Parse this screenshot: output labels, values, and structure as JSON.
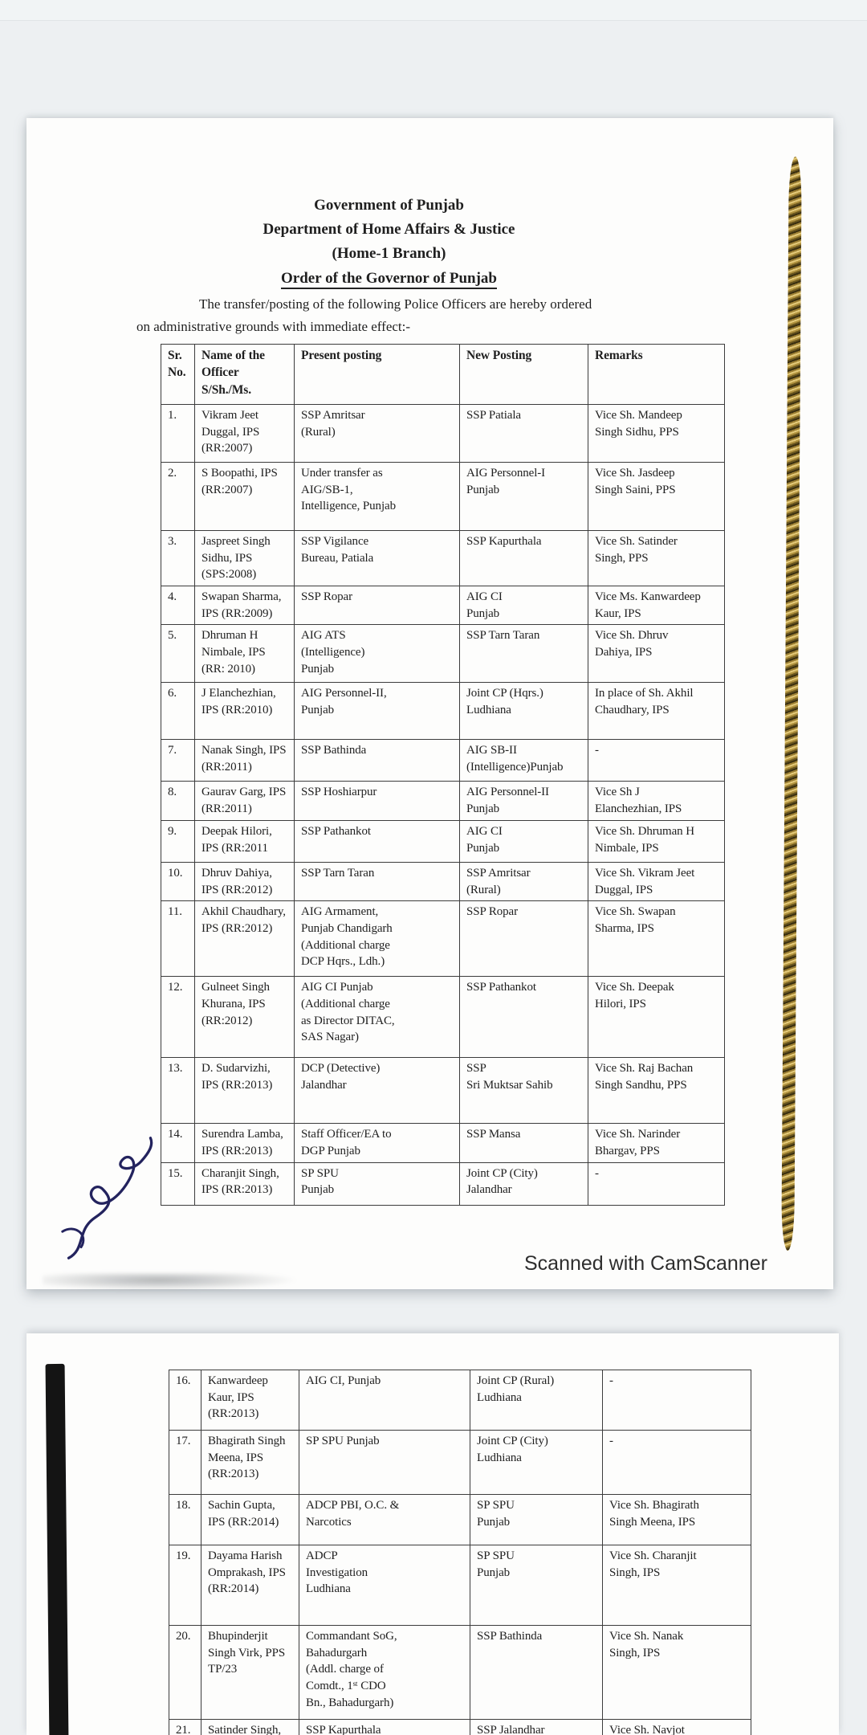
{
  "document": {
    "header": [
      "Government of Punjab",
      "Department of Home Affairs & Justice",
      "(Home-1 Branch)"
    ],
    "order_title": "Order of the Governor of Punjab",
    "intro_line1": "The transfer/posting of the following Police Officers are hereby ordered",
    "intro_line2": "on administrative grounds with immediate effect:-"
  },
  "table": {
    "columns": [
      "Sr.\nNo.",
      "Name of the\nOfficer\nS/Sh./Ms.",
      "Present posting",
      "New Posting",
      "Remarks"
    ],
    "page1_rows": [
      [
        "1.",
        "Vikram Jeet\nDuggal, IPS\n(RR:2007)",
        "SSP Amritsar\n(Rural)",
        "SSP Patiala",
        "Vice Sh. Mandeep\nSingh Sidhu, PPS"
      ],
      [
        "2.",
        "S Boopathi, IPS\n(RR:2007)",
        "Under transfer as\nAIG/SB-1,\nIntelligence, Punjab",
        "AIG Personnel-I\nPunjab",
        "Vice Sh. Jasdeep\nSingh Saini, PPS"
      ],
      [
        "3.",
        "Jaspreet Singh\nSidhu, IPS\n(SPS:2008)",
        "SSP Vigilance\nBureau, Patiala",
        "SSP Kapurthala",
        "Vice Sh. Satinder\nSingh, PPS"
      ],
      [
        "4.",
        "Swapan Sharma,\nIPS (RR:2009)",
        "SSP Ropar",
        "AIG CI\nPunjab",
        "Vice Ms. Kanwardeep\nKaur, IPS"
      ],
      [
        "5.",
        "Dhruman H\nNimbale, IPS\n(RR: 2010)",
        "AIG ATS\n(Intelligence)\nPunjab",
        "SSP Tarn Taran",
        "Vice Sh. Dhruv\nDahiya, IPS"
      ],
      [
        "6.",
        "J Elanchezhian,\nIPS (RR:2010)",
        "AIG Personnel-II,\nPunjab",
        "Joint CP (Hqrs.)\nLudhiana",
        "In place of Sh. Akhil\nChaudhary, IPS"
      ],
      [
        "7.",
        "Nanak Singh, IPS\n(RR:2011)",
        "SSP Bathinda",
        "AIG SB-II\n(Intelligence)Punjab",
        "-"
      ],
      [
        "8.",
        "Gaurav Garg, IPS\n(RR:2011)",
        "SSP Hoshiarpur",
        "AIG Personnel-II\nPunjab",
        "Vice Sh J\nElanchezhian, IPS"
      ],
      [
        "9.",
        "Deepak Hilori,\nIPS (RR:2011",
        "SSP Pathankot",
        "AIG CI\nPunjab",
        "Vice Sh. Dhruman H\nNimbale, IPS"
      ],
      [
        "10.",
        "Dhruv Dahiya,\nIPS (RR:2012)",
        "SSP Tarn Taran",
        "SSP Amritsar\n(Rural)",
        "Vice Sh. Vikram Jeet\nDuggal, IPS"
      ],
      [
        "11.",
        "Akhil Chaudhary,\nIPS (RR:2012)",
        "AIG Armament,\nPunjab Chandigarh\n(Additional charge\nDCP Hqrs., Ldh.)",
        "SSP Ropar",
        "Vice Sh. Swapan\nSharma, IPS"
      ],
      [
        "12.",
        "Gulneet Singh\nKhurana, IPS\n(RR:2012)",
        "AIG CI Punjab\n(Additional charge\nas Director DITAC,\nSAS Nagar)",
        "SSP Pathankot",
        "Vice Sh. Deepak\nHilori, IPS"
      ],
      [
        "13.",
        "D. Sudarvizhi,\nIPS (RR:2013)",
        "DCP (Detective)\nJalandhar",
        "SSP\nSri Muktsar Sahib",
        "Vice Sh. Raj Bachan\nSingh Sandhu, PPS"
      ],
      [
        "14.",
        "Surendra Lamba,\nIPS (RR:2013)",
        "Staff Officer/EA to\nDGP Punjab",
        "SSP Mansa",
        "Vice Sh. Narinder\nBhargav, PPS"
      ],
      [
        "15.",
        "Charanjit Singh,\nIPS (RR:2013)",
        "SP SPU\nPunjab",
        "Joint CP (City)\nJalandhar",
        "-"
      ]
    ],
    "page2_rows": [
      [
        "16.",
        "Kanwardeep\nKaur, IPS\n(RR:2013)",
        "AIG CI, Punjab",
        "Joint CP (Rural)\nLudhiana",
        "-"
      ],
      [
        "17.",
        "Bhagirath Singh\nMeena, IPS\n(RR:2013)",
        "SP SPU Punjab",
        "Joint CP (City)\nLudhiana",
        "-"
      ],
      [
        "18.",
        "Sachin Gupta,\nIPS (RR:2014)",
        "ADCP PBI, O.C. &\nNarcotics",
        "SP SPU\nPunjab",
        "Vice Sh. Bhagirath\nSingh Meena, IPS"
      ],
      [
        "19.",
        "Dayama Harish\nOmprakash, IPS\n(RR:2014)",
        "ADCP\nInvestigation\nLudhiana",
        "SP SPU\nPunjab",
        "Vice Sh. Charanjit\nSingh, IPS"
      ],
      [
        "20.",
        "Bhupinderjit\nSingh Virk, PPS\nTP/23",
        "Commandant SoG,\nBahadurgarh\n(Addl. charge of\nComdt., 1ˢᵗ CDO\nBn., Bahadurgarh)",
        "SSP Bathinda",
        "Vice Sh. Nanak\nSingh, IPS"
      ],
      [
        "21.",
        "Satinder Singh,",
        "SSP Kapurthala",
        "SSP Jalandhar",
        "Vice Sh. Navjot"
      ]
    ]
  },
  "watermark": {
    "label": "Scanned with CamScanner"
  },
  "colors": {
    "paper": "#fdfdfc",
    "background": "#edf0f2",
    "ink": "#1f1f1f",
    "table_border": "#3c3c3c",
    "gold_edge": "#b2933f",
    "signature_ink": "#23235e",
    "watermark_text": "#2e2e2e"
  }
}
